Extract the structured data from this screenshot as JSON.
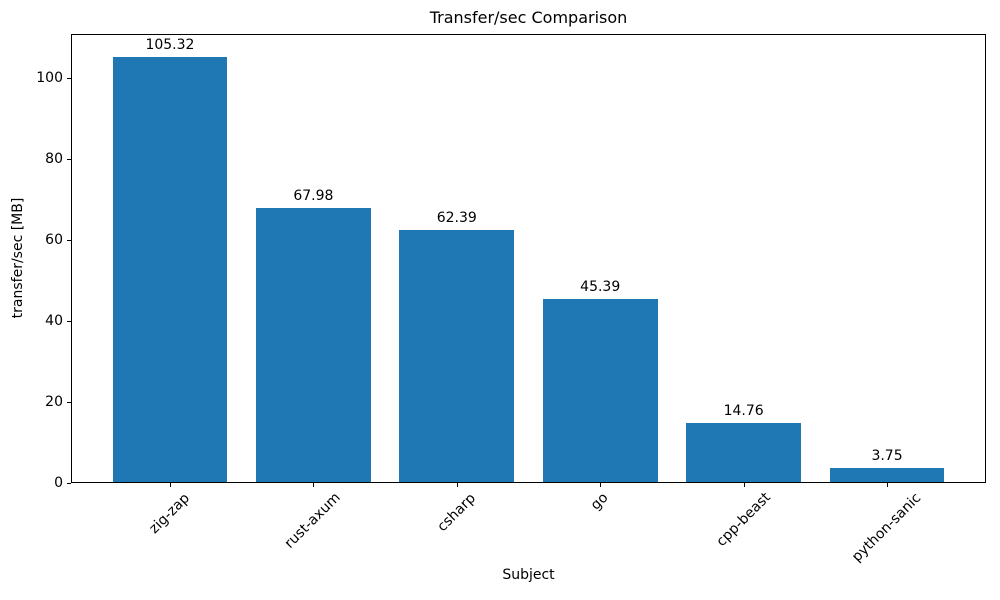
{
  "chart_data": {
    "type": "bar",
    "title": "Transfer/sec Comparison",
    "xlabel": "Subject",
    "ylabel": "transfer/sec [MB]",
    "categories": [
      "zig-zap",
      "rust-axum",
      "csharp",
      "go",
      "cpp-beast",
      "python-sanic"
    ],
    "values": [
      105.32,
      67.98,
      62.39,
      45.39,
      14.76,
      3.75
    ],
    "bar_labels": [
      "105.32",
      "67.98",
      "62.39",
      "45.39",
      "14.76",
      "3.75"
    ],
    "yticks": [
      0,
      20,
      40,
      60,
      80,
      100
    ],
    "ylim": [
      0,
      110.9
    ],
    "grid": false,
    "legend_position": "none",
    "bar_color": "#1f77b4",
    "text_color": "#000000",
    "spine_color": "#000000",
    "background_color": "#ffffff",
    "x_tick_rotation_deg": 45
  }
}
